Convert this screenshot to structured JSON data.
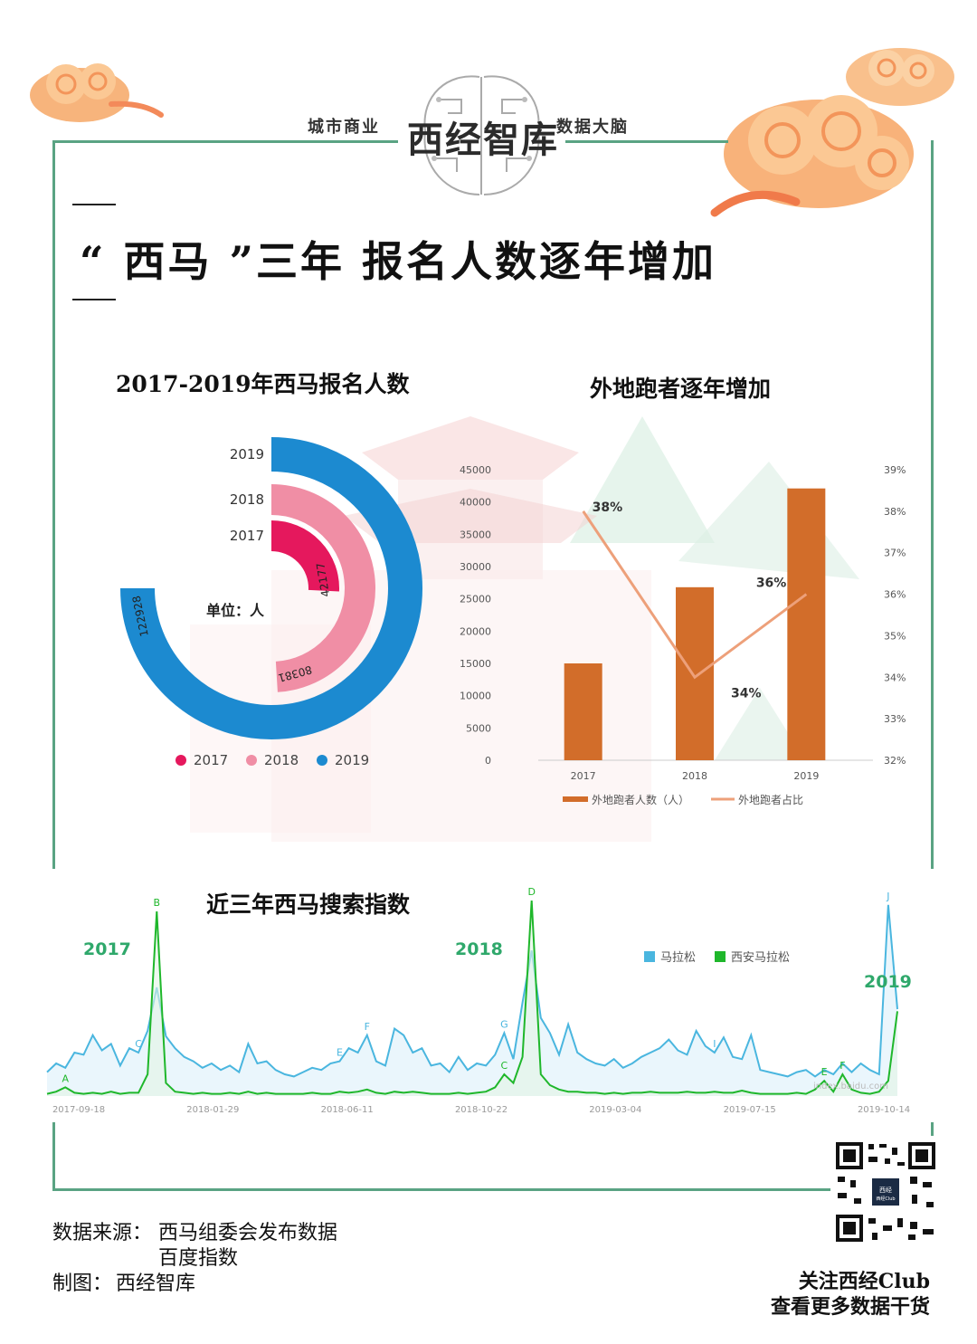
{
  "header": {
    "tag_left": "城市商业",
    "brand": "西经智库",
    "tag_right": "数据大脑"
  },
  "main_title": "“ 西马 ”三年 报名人数逐年增加",
  "charts": {
    "radial_title": "2017-2019年西马报名人数",
    "combo_title": "外地跑者逐年增加",
    "search_title": "近三年西马搜索指数"
  },
  "colors": {
    "y2017": "#e5185d",
    "y2018": "#f08ea5",
    "y2019": "#1c8ad0",
    "bar": "#d26d2a",
    "line": "#eda07a",
    "search_general": "#4ab6df",
    "search_xian": "#1fb72b",
    "frame": "#5aa383",
    "year_label": "#2fa86b"
  },
  "chart_data": [
    {
      "type": "radial_bar",
      "title": "2017-2019年西马报名人数",
      "unit_label": "单位：人",
      "categories": [
        "2017",
        "2018",
        "2019"
      ],
      "values": [
        42177,
        80381,
        122928
      ],
      "value_labels": [
        "42177",
        "80381",
        "122928"
      ],
      "legend": [
        "2017",
        "2018",
        "2019"
      ],
      "legend_position": "bottom"
    },
    {
      "type": "bar_line",
      "title": "外地跑者逐年增加",
      "categories": [
        "2017",
        "2018",
        "2019"
      ],
      "series": [
        {
          "name": "外地跑者人数（人）",
          "type": "bar",
          "axis": "left",
          "values": [
            15000,
            26800,
            42100
          ]
        },
        {
          "name": "外地跑者占比",
          "type": "line",
          "axis": "right",
          "values": [
            38,
            34,
            36
          ],
          "labels": [
            "38%",
            "34%",
            "36%"
          ]
        }
      ],
      "y_left": {
        "min": 0,
        "max": 45000,
        "ticks": [
          "0",
          "5000",
          "10000",
          "15000",
          "20000",
          "25000",
          "30000",
          "35000",
          "40000",
          "45000"
        ]
      },
      "y_right": {
        "min": 32,
        "max": 39,
        "ticks": [
          "32%",
          "33%",
          "34%",
          "35%",
          "36%",
          "37%",
          "38%",
          "39%"
        ]
      },
      "legend_position": "bottom"
    },
    {
      "type": "area",
      "title": "近三年西马搜索指数",
      "x_ticks": [
        "2017-09-18",
        "2018-01-29",
        "2018-06-11",
        "2018-10-22",
        "2019-03-04",
        "2019-07-15",
        "2019-10-14"
      ],
      "legend": [
        "马拉松",
        "西安马拉松"
      ],
      "legend_position": "top-right",
      "year_labels": [
        "2017",
        "2018",
        "2019"
      ],
      "watermark": "index.baidu.com",
      "series": [
        {
          "name": "马拉松",
          "values": [
            22,
            30,
            26,
            40,
            38,
            56,
            42,
            48,
            28,
            44,
            40,
            60,
            100,
            55,
            44,
            36,
            32,
            26,
            30,
            24,
            28,
            22,
            48,
            30,
            32,
            24,
            20,
            18,
            22,
            26,
            24,
            30,
            32,
            44,
            40,
            56,
            32,
            28,
            62,
            56,
            40,
            44,
            28,
            30,
            22,
            36,
            24,
            30,
            28,
            38,
            58,
            34,
            86,
            134,
            72,
            58,
            38,
            66,
            40,
            34,
            30,
            28,
            34,
            26,
            30,
            36,
            40,
            44,
            52,
            42,
            38,
            60,
            46,
            40,
            54,
            36,
            34,
            56,
            24,
            22,
            20,
            18,
            22,
            24,
            18,
            24,
            20,
            30,
            22,
            30,
            24,
            20,
            176,
            80
          ]
        },
        {
          "name": "西安马拉松",
          "values": [
            2,
            4,
            8,
            3,
            2,
            3,
            2,
            4,
            2,
            3,
            3,
            20,
            170,
            12,
            4,
            3,
            2,
            3,
            2,
            2,
            3,
            2,
            4,
            2,
            3,
            2,
            2,
            2,
            2,
            3,
            2,
            2,
            4,
            3,
            4,
            6,
            3,
            2,
            4,
            3,
            4,
            3,
            2,
            2,
            2,
            3,
            2,
            3,
            4,
            8,
            20,
            12,
            36,
            180,
            20,
            10,
            6,
            4,
            4,
            3,
            3,
            2,
            3,
            2,
            3,
            3,
            4,
            3,
            3,
            3,
            4,
            3,
            3,
            4,
            3,
            3,
            5,
            3,
            2,
            2,
            2,
            2,
            3,
            2,
            6,
            14,
            4,
            20,
            6,
            3,
            2,
            4,
            14,
            78
          ]
        }
      ],
      "peak_markers": [
        {
          "label": "A",
          "series": 1,
          "index": 2
        },
        {
          "label": "B",
          "series": 1,
          "index": 12
        },
        {
          "label": "C",
          "series": 0,
          "index": 10
        },
        {
          "label": "E",
          "series": 0,
          "index": 32
        },
        {
          "label": "F",
          "series": 0,
          "index": 35
        },
        {
          "label": "G",
          "series": 0,
          "index": 50
        },
        {
          "label": "C",
          "series": 1,
          "index": 50
        },
        {
          "label": "D",
          "series": 1,
          "index": 53
        },
        {
          "label": "I",
          "series": 0,
          "index": 73
        },
        {
          "label": "E",
          "series": 1,
          "index": 85
        },
        {
          "label": "F",
          "series": 1,
          "index": 87
        },
        {
          "label": "J",
          "series": 0,
          "index": 92
        }
      ]
    }
  ],
  "footer": {
    "source_label": "数据来源：",
    "source_line1": "西马组委会发布数据",
    "source_line2": "百度指数",
    "maker_label": "制图：",
    "maker": "西经智库",
    "qr_caption": "西经Club",
    "follow_line1": "关注西经Club",
    "follow_line2": "查看更多数据干货"
  }
}
